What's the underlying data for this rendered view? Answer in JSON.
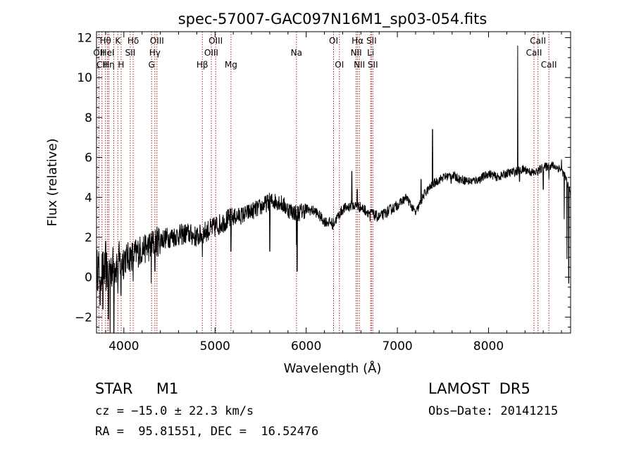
{
  "chart_data": {
    "type": "line",
    "title": "spec-57007-GAC097N16M1_sp03-054.fits",
    "xlabel": "Wavelength (Å)",
    "ylabel": "Flux (relative)",
    "xlim": [
      3700,
      8900
    ],
    "ylim": [
      -2.8,
      12.3
    ],
    "grid": false,
    "x_ticks": [
      {
        "value": 4000,
        "label": "4000"
      },
      {
        "value": 5000,
        "label": "5000"
      },
      {
        "value": 6000,
        "label": "6000"
      },
      {
        "value": 7000,
        "label": "7000"
      },
      {
        "value": 8000,
        "label": "8000"
      }
    ],
    "y_ticks": [
      {
        "value": -2,
        "label": "−2"
      },
      {
        "value": 0,
        "label": "0"
      },
      {
        "value": 2,
        "label": "2"
      },
      {
        "value": 4,
        "label": "4"
      },
      {
        "value": 6,
        "label": "6"
      },
      {
        "value": 8,
        "label": "8"
      },
      {
        "value": 10,
        "label": "10"
      },
      {
        "value": 12,
        "label": "12"
      }
    ],
    "continuum": [
      [
        3700,
        0.4
      ],
      [
        3800,
        0.3
      ],
      [
        3900,
        0.6
      ],
      [
        4000,
        0.9
      ],
      [
        4100,
        1.1
      ],
      [
        4200,
        1.4
      ],
      [
        4300,
        1.6
      ],
      [
        4400,
        1.9
      ],
      [
        4500,
        2.0
      ],
      [
        4600,
        2.1
      ],
      [
        4700,
        2.2
      ],
      [
        4800,
        2.0
      ],
      [
        4900,
        2.3
      ],
      [
        5000,
        2.5
      ],
      [
        5100,
        2.8
      ],
      [
        5200,
        3.0
      ],
      [
        5300,
        3.1
      ],
      [
        5400,
        3.3
      ],
      [
        5500,
        3.5
      ],
      [
        5600,
        3.8
      ],
      [
        5700,
        3.8
      ],
      [
        5800,
        3.4
      ],
      [
        5900,
        3.2
      ],
      [
        6000,
        3.4
      ],
      [
        6100,
        3.3
      ],
      [
        6200,
        2.8
      ],
      [
        6300,
        2.7
      ],
      [
        6400,
        3.4
      ],
      [
        6500,
        3.6
      ],
      [
        6600,
        3.5
      ],
      [
        6700,
        3.2
      ],
      [
        6800,
        3.0
      ],
      [
        6900,
        3.3
      ],
      [
        7000,
        3.6
      ],
      [
        7100,
        4.0
      ],
      [
        7200,
        3.2
      ],
      [
        7300,
        4.2
      ],
      [
        7400,
        4.7
      ],
      [
        7500,
        5.0
      ],
      [
        7600,
        5.1
      ],
      [
        7700,
        4.9
      ],
      [
        7800,
        4.8
      ],
      [
        7900,
        4.9
      ],
      [
        8000,
        5.2
      ],
      [
        8100,
        5.0
      ],
      [
        8200,
        5.2
      ],
      [
        8300,
        5.3
      ],
      [
        8400,
        5.4
      ],
      [
        8500,
        5.2
      ],
      [
        8600,
        5.5
      ],
      [
        8700,
        5.6
      ],
      [
        8800,
        5.4
      ],
      [
        8850,
        4.9
      ],
      [
        8900,
        4.2
      ]
    ],
    "features": [
      [
        3740,
        -1.4
      ],
      [
        3770,
        -1.6
      ],
      [
        3800,
        1.8
      ],
      [
        3830,
        -2.1
      ],
      [
        3850,
        -2.8
      ],
      [
        3890,
        -2.8
      ],
      [
        3934,
        -0.8
      ],
      [
        3969,
        -0.9
      ],
      [
        4010,
        1.3
      ],
      [
        4102,
        -0.2
      ],
      [
        4227,
        1.5
      ],
      [
        4300,
        -0.3
      ],
      [
        4340,
        0.3
      ],
      [
        4861,
        1.0
      ],
      [
        5015,
        3.0
      ],
      [
        5175,
        1.3
      ],
      [
        5600,
        1.3
      ],
      [
        5893,
        1.6
      ],
      [
        5900,
        0.3
      ],
      [
        6290,
        2.4
      ],
      [
        6500,
        5.3
      ],
      [
        6560,
        4.4
      ],
      [
        6700,
        2.8
      ],
      [
        6720,
        3.4
      ],
      [
        7260,
        4.9
      ],
      [
        7385,
        7.4
      ],
      [
        7590,
        4.7
      ],
      [
        8320,
        11.6
      ],
      [
        8340,
        4.8
      ],
      [
        8540,
        5.1
      ],
      [
        8600,
        4.4
      ],
      [
        8662,
        4.9
      ],
      [
        8800,
        5.9
      ],
      [
        8830,
        2.9
      ],
      [
        8860,
        0.9
      ],
      [
        8880,
        -0.3
      ],
      [
        8895,
        4.3
      ]
    ],
    "lines": [
      {
        "w": 3727,
        "label": "OII",
        "row": 1
      },
      {
        "w": 3760,
        "label": "CII",
        "row": 2
      },
      {
        "w": 3798,
        "label": "Hθ",
        "row": 0
      },
      {
        "w": 3820,
        "label": "HeI",
        "row": 1
      },
      {
        "w": 3835,
        "label": "Hη",
        "row": 2
      },
      {
        "w": 3889,
        "label": "",
        "row": 0
      },
      {
        "w": 3934,
        "label": "K",
        "row": 0
      },
      {
        "w": 3970,
        "label": "H",
        "row": 2
      },
      {
        "w": 4102,
        "label": "Hδ",
        "row": 0
      },
      {
        "w": 4070,
        "label": "SII",
        "row": 1
      },
      {
        "w": 4304,
        "label": "G",
        "row": 2
      },
      {
        "w": 4340,
        "label": "Hγ",
        "row": 1
      },
      {
        "w": 4363,
        "label": "OIII",
        "row": 0
      },
      {
        "w": 4861,
        "label": "Hβ",
        "row": 2
      },
      {
        "w": 4959,
        "label": "OIII",
        "row": 1
      },
      {
        "w": 5007,
        "label": "OIII",
        "row": 0
      },
      {
        "w": 5175,
        "label": "Mg",
        "row": 2
      },
      {
        "w": 5893,
        "label": "Na",
        "row": 1
      },
      {
        "w": 6300,
        "label": "OI",
        "row": 0
      },
      {
        "w": 6364,
        "label": "OI",
        "row": 2
      },
      {
        "w": 6548,
        "label": "NII",
        "row": 1
      },
      {
        "w": 6563,
        "label": "Hα",
        "row": 0
      },
      {
        "w": 6583,
        "label": "NII",
        "row": 2
      },
      {
        "w": 6707,
        "label": "Li",
        "row": 1
      },
      {
        "w": 6716,
        "label": "SII",
        "row": 0
      },
      {
        "w": 6731,
        "label": "SII",
        "row": 2
      },
      {
        "w": 8498,
        "label": "CaII",
        "row": 1
      },
      {
        "w": 8542,
        "label": "CaII",
        "row": 0
      },
      {
        "w": 8662,
        "label": "CaII",
        "row": 2
      }
    ]
  },
  "info": {
    "object": "STAR     M1",
    "survey": "LAMOST  DR5",
    "redshift": "cz = −15.0 ± 22.3 km/s",
    "obs_date": "Obs−Date: 20141215",
    "coords": "RA =  95.81551, DEC =  16.52476"
  }
}
